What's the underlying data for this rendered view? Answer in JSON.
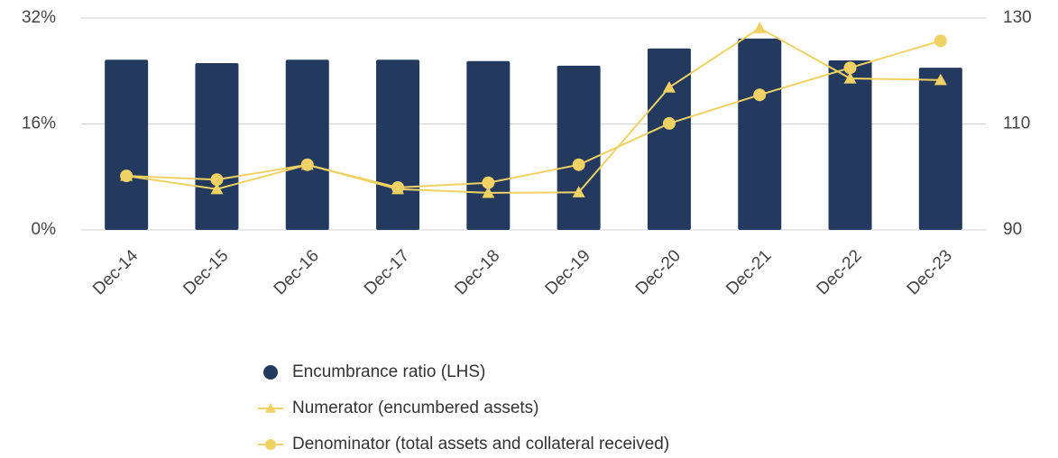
{
  "chart_data": {
    "type": "bar-line",
    "categories": [
      "Dec-14",
      "Dec-15",
      "Dec-16",
      "Dec-17",
      "Dec-18",
      "Dec-19",
      "Dec-20",
      "Dec-21",
      "Dec-22",
      "Dec-23"
    ],
    "series": [
      {
        "name": "Encumbrance ratio (LHS)",
        "type": "bar",
        "color": "#233a5e",
        "values": [
          25.7,
          25.2,
          25.7,
          25.7,
          25.5,
          24.8,
          27.4,
          28.9,
          25.6,
          24.5
        ]
      },
      {
        "name": "Numerator (encumbered assets)",
        "type": "line",
        "marker": "triangle",
        "axis": "y2",
        "color": "#f0d264",
        "values": [
          100.2,
          97.7,
          102.3,
          97.7,
          97.0,
          97.1,
          116.9,
          128.1,
          118.6,
          118.3
        ]
      },
      {
        "name": "Denominator (total assets and collateral received)",
        "type": "line",
        "marker": "circle",
        "axis": "y2",
        "color": "#f0d264",
        "values": [
          100.2,
          99.5,
          102.3,
          98.0,
          98.9,
          102.3,
          110.1,
          115.5,
          120.6,
          125.7
        ]
      }
    ],
    "ylim": [
      0,
      32
    ],
    "yticks": [
      {
        "value": 0,
        "label": "0%"
      },
      {
        "value": 16,
        "label": "16%"
      },
      {
        "value": 32,
        "label": "32%"
      }
    ],
    "y2lim": [
      90,
      130
    ],
    "y2ticks": [
      90,
      110,
      130
    ],
    "grid": true,
    "legend": "bottom"
  }
}
